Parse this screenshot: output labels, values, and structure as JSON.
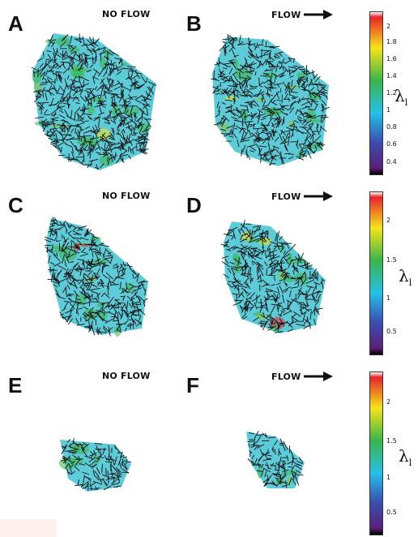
{
  "panels": [
    {
      "letter": "A",
      "condition": "NO FLOW",
      "flow_arrow": false
    },
    {
      "letter": "B",
      "condition": "FLOW",
      "flow_arrow": true
    },
    {
      "letter": "C",
      "condition": "NO FLOW",
      "flow_arrow": false
    },
    {
      "letter": "D",
      "condition": "FLOW",
      "flow_arrow": true
    },
    {
      "letter": "E",
      "condition": "NO FLOW",
      "flow_arrow": false
    },
    {
      "letter": "F",
      "condition": "FLOW",
      "flow_arrow": true
    }
  ],
  "colorbars": [
    {
      "label": "λ",
      "label_sub": "l",
      "ticks": [
        "2",
        "1.8",
        "1.6",
        "1.4",
        "1.2",
        "1",
        "0.8",
        "0.6",
        "0.4"
      ]
    },
    {
      "label": "λ",
      "label_sub": "l",
      "ticks": [
        "2",
        "1.5",
        "1",
        "0.5"
      ]
    },
    {
      "label": "λ",
      "label_sub": "l",
      "ticks": [
        "2",
        "1.5",
        "1",
        "0.5"
      ]
    }
  ],
  "colors": {
    "field_base": "#5ecbd8",
    "colormap": [
      "#ffffff",
      "#e8242a",
      "#f5e41c",
      "#3bb54a",
      "#26c0e8",
      "#3a4fb0",
      "#5b1f7a",
      "#000000"
    ],
    "fiber": "#111111"
  }
}
